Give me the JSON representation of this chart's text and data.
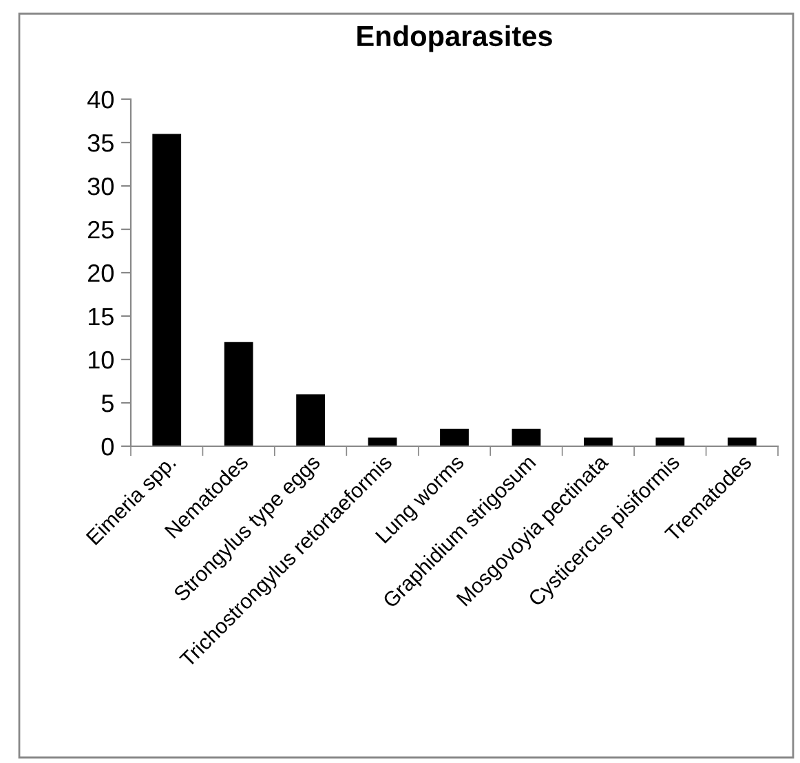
{
  "chart_data": {
    "type": "bar",
    "title": "Endoparasites",
    "categories": [
      "Eimeria spp.",
      "Nematodes",
      "Strongylus type eggs",
      "Trichostrongylus retortaeformis",
      "Lung worms",
      "Graphidium strigosum",
      "Mosgovoyia pectinata",
      "Cysticercus pisiformis",
      "Trematodes"
    ],
    "values": [
      36,
      12,
      6,
      1,
      2,
      2,
      1,
      1,
      1
    ],
    "color": "#000000",
    "ylim": [
      0,
      40
    ],
    "yticks": [
      0,
      5,
      10,
      15,
      20,
      25,
      30,
      35,
      40
    ],
    "grid": false,
    "legend": false
  }
}
